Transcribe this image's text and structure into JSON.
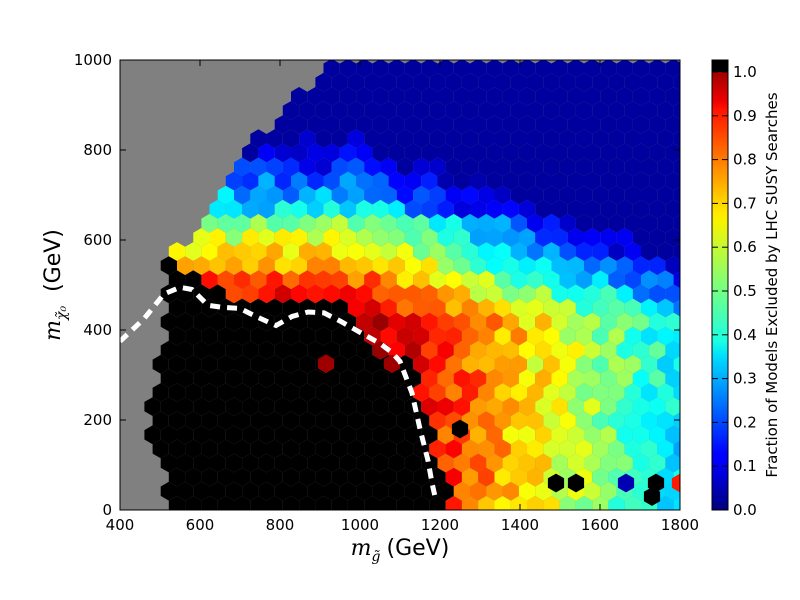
{
  "chart_data": {
    "type": "heatmap",
    "subtype": "hexbin",
    "xlabel_prefix": "m",
    "xlabel_sub": "g̃",
    "xlabel_unit": "(GeV)",
    "ylabel_prefix": "m",
    "ylabel_sub": "χ̃₀",
    "ylabel_unit": "(GeV)",
    "xlim": [
      400,
      1800
    ],
    "ylim": [
      0,
      1000
    ],
    "xticks": [
      400,
      600,
      800,
      1000,
      1200,
      1400,
      1600,
      1800
    ],
    "yticks": [
      0,
      200,
      400,
      600,
      800,
      1000
    ],
    "colorbar": {
      "label": "Fraction of Models Excluded by LHC SUSY Searches",
      "range": [
        0.0,
        1.0
      ],
      "ticks": [
        "0.0",
        "0.1",
        "0.2",
        "0.3",
        "0.4",
        "0.5",
        "0.6",
        "0.7",
        "0.8",
        "0.9",
        "1.0"
      ],
      "colormap": "jet",
      "extend_top_color": "#000000"
    },
    "background_color": "#808080",
    "hex_radius_data_x": 23.5,
    "populated_region": {
      "lower_edge_x_at_y": [
        [
          0,
          530
        ],
        [
          200,
          470
        ],
        [
          380,
          510
        ],
        [
          560,
          520
        ],
        [
          600,
          560
        ],
        [
          700,
          640
        ],
        [
          800,
          720
        ],
        [
          900,
          820
        ],
        [
          1000,
          920
        ]
      ]
    },
    "field_notes": [
      {
        "region": "fully excluded (black)",
        "x_range": [
          450,
          1200
        ],
        "y_range": [
          0,
          560
        ]
      },
      {
        "region": "high exclusion (red)",
        "x_range": [
          600,
          1350
        ],
        "y_range": [
          250,
          680
        ]
      },
      {
        "region": "moderate exclusion (green/yellow)",
        "x_range": [
          1200,
          1800
        ],
        "y_range": [
          0,
          650
        ]
      },
      {
        "region": "low exclusion (blue)",
        "x_range": [
          800,
          1800
        ],
        "y_range": [
          650,
          1000
        ]
      }
    ],
    "isolated_cells": [
      {
        "x": 915,
        "y": 325,
        "value": 0.97
      },
      {
        "x": 1080,
        "y": 325,
        "value": 0.97
      },
      {
        "x": 1250,
        "y": 180,
        "value": 1.0
      },
      {
        "x": 1490,
        "y": 60,
        "value": 1.0
      },
      {
        "x": 1540,
        "y": 60,
        "value": 1.0
      },
      {
        "x": 1730,
        "y": 30,
        "value": 1.0
      },
      {
        "x": 1740,
        "y": 60,
        "value": 1.0
      },
      {
        "x": 1800,
        "y": 60,
        "value": 0.85
      },
      {
        "x": 1665,
        "y": 60,
        "value": 0.05
      }
    ],
    "dashed_line": {
      "color": "#ffffff",
      "points": [
        [
          400,
          375
        ],
        [
          460,
          425
        ],
        [
          510,
          480
        ],
        [
          550,
          495
        ],
        [
          580,
          490
        ],
        [
          620,
          455
        ],
        [
          660,
          450
        ],
        [
          700,
          448
        ],
        [
          740,
          430
        ],
        [
          790,
          410
        ],
        [
          830,
          430
        ],
        [
          870,
          440
        ],
        [
          910,
          438
        ],
        [
          950,
          420
        ],
        [
          1000,
          395
        ],
        [
          1050,
          370
        ],
        [
          1080,
          350
        ],
        [
          1100,
          330
        ],
        [
          1130,
          260
        ],
        [
          1150,
          180
        ],
        [
          1170,
          110
        ],
        [
          1180,
          60
        ],
        [
          1190,
          20
        ]
      ]
    }
  }
}
